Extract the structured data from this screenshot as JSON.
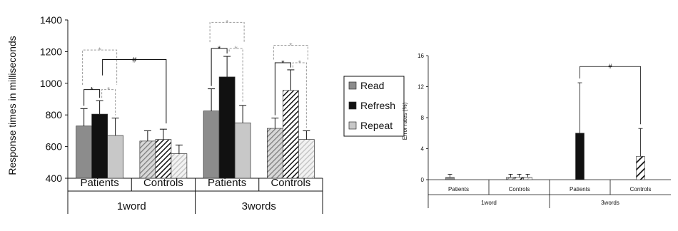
{
  "chart_data": [
    {
      "type": "bar",
      "ylabel": "Response times in milliseconds",
      "ylim": [
        400,
        1400
      ],
      "yticks": [
        400,
        600,
        800,
        1000,
        1200,
        1400
      ],
      "groups": [
        "1word",
        "3words"
      ],
      "categories": [
        "Patients",
        "Controls",
        "Patients",
        "Controls"
      ],
      "series": [
        {
          "name": "Read",
          "values": [
            730,
            635,
            825,
            715
          ],
          "errors": [
            110,
            65,
            140,
            65
          ]
        },
        {
          "name": "Refresh",
          "values": [
            805,
            645,
            1040,
            955
          ],
          "errors": [
            85,
            65,
            130,
            130
          ]
        },
        {
          "name": "Repeat",
          "values": [
            670,
            555,
            750,
            645
          ],
          "errors": [
            110,
            55,
            110,
            55
          ]
        }
      ],
      "significance": [
        "*",
        "*",
        "#",
        "*",
        "*",
        "*",
        "*",
        "*",
        "*"
      ],
      "colors": {
        "Read": "#8c8c8c",
        "Refresh": "#111111",
        "Repeat": "#c8c8c8"
      }
    },
    {
      "type": "bar",
      "ylabel": "Error rates (%)",
      "ylim": [
        0,
        16
      ],
      "yticks": [
        0,
        4,
        8,
        12,
        16
      ],
      "groups": [
        "1word",
        "3words"
      ],
      "categories": [
        "Patients",
        "Controls",
        "Patients",
        "Controls"
      ],
      "series": [
        {
          "name": "Read",
          "values": [
            0.3,
            0.3,
            0,
            0
          ],
          "errors": [
            0.4,
            0.4,
            0,
            0
          ]
        },
        {
          "name": "Refresh",
          "values": [
            0,
            0.3,
            6.0,
            3.0
          ],
          "errors": [
            0,
            0.4,
            6.5,
            3.6
          ]
        },
        {
          "name": "Repeat",
          "values": [
            0,
            0.3,
            0,
            0
          ],
          "errors": [
            0,
            0.4,
            0,
            0
          ]
        }
      ],
      "significance": [
        "#"
      ]
    }
  ],
  "legend": {
    "items": [
      "Read",
      "Refresh",
      "Repeat"
    ]
  }
}
